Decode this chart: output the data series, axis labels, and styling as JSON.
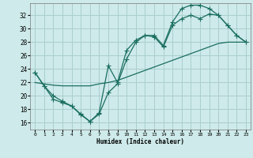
{
  "xlabel": "Humidex (Indice chaleur)",
  "background_color": "#ceeaea",
  "grid_color": "#aacece",
  "line_color": "#1a6e60",
  "x_ticks": [
    0,
    1,
    2,
    3,
    4,
    5,
    6,
    7,
    8,
    9,
    10,
    11,
    12,
    13,
    14,
    15,
    16,
    17,
    18,
    19,
    20,
    21,
    22,
    23
  ],
  "y_ticks": [
    16,
    18,
    20,
    22,
    24,
    26,
    28,
    30,
    32
  ],
  "xlim": [
    -0.5,
    23.5
  ],
  "ylim": [
    15.0,
    33.8
  ],
  "series1_x": [
    0,
    1,
    2,
    3,
    4,
    5,
    6,
    7,
    8,
    9,
    10,
    11,
    12,
    13,
    14,
    15,
    16,
    17,
    18,
    19,
    20,
    21,
    22,
    23
  ],
  "series1_y": [
    23.5,
    21.5,
    19.5,
    19.0,
    18.5,
    17.2,
    16.2,
    17.5,
    24.5,
    22.0,
    26.8,
    28.3,
    29.0,
    29.0,
    27.5,
    31.0,
    33.0,
    33.5,
    33.5,
    33.0,
    32.0,
    30.5,
    29.0,
    28.0
  ],
  "series2_x": [
    0,
    1,
    2,
    3,
    4,
    5,
    6,
    7,
    8,
    9,
    10,
    11,
    12,
    13,
    14,
    15,
    16,
    17,
    18,
    19,
    20,
    21,
    22,
    23
  ],
  "series2_y": [
    23.5,
    21.5,
    20.0,
    19.2,
    18.5,
    17.3,
    16.2,
    17.3,
    20.5,
    21.8,
    25.5,
    28.0,
    29.0,
    28.8,
    27.3,
    30.5,
    31.5,
    32.0,
    31.5,
    32.2,
    32.0,
    30.5,
    29.0,
    28.0
  ],
  "series3_x": [
    0,
    1,
    2,
    3,
    4,
    5,
    6,
    7,
    8,
    9,
    10,
    11,
    12,
    13,
    14,
    15,
    16,
    17,
    18,
    19,
    20,
    21,
    22,
    23
  ],
  "series3_y": [
    22.0,
    21.8,
    21.6,
    21.5,
    21.5,
    21.5,
    21.5,
    21.8,
    22.0,
    22.3,
    22.8,
    23.3,
    23.8,
    24.3,
    24.8,
    25.3,
    25.8,
    26.3,
    26.8,
    27.3,
    27.8,
    28.0,
    28.0,
    28.0
  ]
}
